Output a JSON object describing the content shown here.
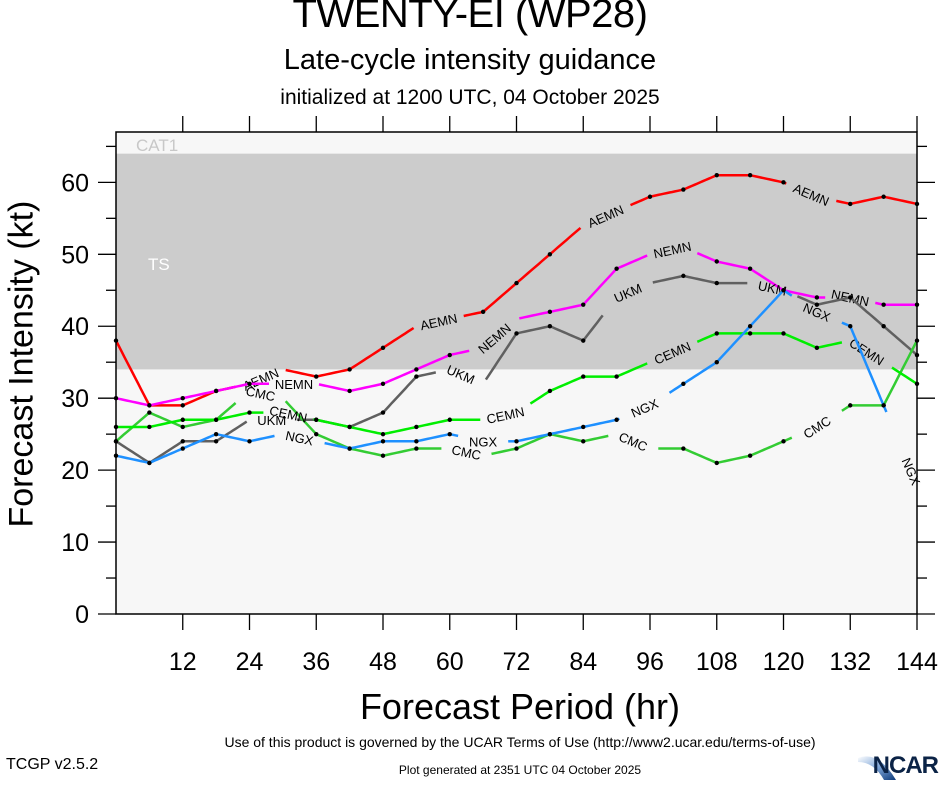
{
  "header": {
    "title": "TWENTY-EI (WP28)",
    "subtitle": "Late-cycle intensity guidance",
    "initialized": "initialized at 1200 UTC, 04 October 2025"
  },
  "footer": {
    "terms": "Use of this product is governed by the UCAR Terms of Use (http://www2.ucar.edu/terms-of-use)",
    "version": "TCGP v2.5.2",
    "generated": "Plot generated at 2351 UTC   04 October 2025",
    "logo": "NCAR"
  },
  "chart_data": {
    "type": "line",
    "title": "TWENTY-EI (WP28)",
    "subtitle": "Late-cycle intensity guidance",
    "xlabel": "Forecast Period (hr)",
    "ylabel": "Forecast Intensity (kt)",
    "xlim": [
      0,
      144
    ],
    "ylim": [
      0,
      67
    ],
    "x_ticks": [
      12,
      24,
      36,
      48,
      60,
      72,
      84,
      96,
      108,
      120,
      132,
      144
    ],
    "y_ticks": [
      0,
      10,
      20,
      30,
      40,
      50,
      60
    ],
    "grid": false,
    "bands": [
      {
        "name": "TS",
        "from": 34,
        "to": 64,
        "color": "#cccccc",
        "label_color": "#ffffff"
      },
      {
        "name": "CAT1",
        "from": 64,
        "to": 67,
        "color": "#f7f7f7",
        "label_color": "#c8c8c8"
      }
    ],
    "background_color": "#f7f7f7",
    "x": [
      0,
      6,
      12,
      18,
      24,
      30,
      36,
      42,
      48,
      54,
      60,
      66,
      72,
      78,
      84,
      90,
      96,
      102,
      108,
      114,
      120,
      126,
      132,
      138,
      144
    ],
    "series": [
      {
        "name": "AEMN",
        "color": "#ff0000",
        "label_at": [
          26,
          58,
          88,
          125
        ],
        "values": [
          38,
          29,
          29,
          31,
          32,
          34,
          33,
          34,
          37,
          40,
          41,
          42,
          46,
          50,
          54,
          56,
          58,
          59,
          61,
          61,
          60,
          58,
          57,
          58,
          57
        ]
      },
      {
        "name": "NEMN",
        "color": "#ff00ff",
        "label_at": [
          32,
          68,
          100,
          132
        ],
        "values": [
          30,
          29,
          30,
          31,
          32,
          32,
          32,
          31,
          32,
          34,
          36,
          37,
          41,
          42,
          43,
          48,
          50,
          51,
          49,
          48,
          45,
          44,
          44,
          43,
          43
        ]
      },
      {
        "name": "UKM",
        "color": "#606060",
        "label_at": [
          28,
          62,
          92,
          118
        ],
        "values": [
          24,
          21,
          24,
          24,
          27,
          27,
          27,
          26,
          28,
          33,
          34,
          32,
          39,
          40,
          38,
          44,
          46,
          47,
          46,
          46,
          45,
          43,
          44,
          40,
          36
        ]
      },
      {
        "name": "CMC",
        "color": "#33cc33",
        "label_at": [
          26,
          63,
          93,
          126
        ],
        "values": [
          24,
          28,
          26,
          27,
          31,
          30,
          25,
          23,
          22,
          23,
          23,
          22,
          23,
          25,
          24,
          25,
          23,
          23,
          21,
          22,
          24,
          26,
          29,
          29,
          38
        ]
      },
      {
        "name": "CEMN",
        "color": "#00ee00",
        "label_at": [
          31,
          70,
          100,
          135
        ],
        "values": [
          26,
          26,
          27,
          27,
          28,
          28,
          27,
          26,
          25,
          26,
          27,
          27,
          28,
          31,
          33,
          33,
          35,
          37,
          39,
          39,
          39,
          37,
          38,
          35,
          32
        ]
      },
      {
        "name": "NGX",
        "color": "#1e90ff",
        "label_at": [
          33,
          66,
          95,
          126,
          143
        ],
        "values": [
          22,
          21,
          23,
          25,
          24,
          25,
          24,
          23,
          24,
          24,
          25,
          24,
          24,
          25,
          26,
          27,
          29,
          32,
          35,
          40,
          45,
          42,
          40,
          29,
          18
        ]
      }
    ]
  }
}
